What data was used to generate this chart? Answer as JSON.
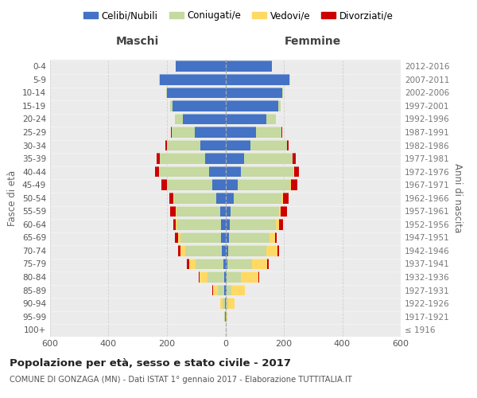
{
  "age_groups": [
    "100+",
    "95-99",
    "90-94",
    "85-89",
    "80-84",
    "75-79",
    "70-74",
    "65-69",
    "60-64",
    "55-59",
    "50-54",
    "45-49",
    "40-44",
    "35-39",
    "30-34",
    "25-29",
    "20-24",
    "15-19",
    "10-14",
    "5-9",
    "0-4"
  ],
  "birth_years": [
    "≤ 1916",
    "1917-1921",
    "1922-1926",
    "1927-1931",
    "1932-1936",
    "1937-1941",
    "1942-1946",
    "1947-1951",
    "1952-1956",
    "1957-1961",
    "1962-1966",
    "1967-1971",
    "1972-1976",
    "1977-1981",
    "1982-1986",
    "1987-1991",
    "1992-1996",
    "1997-2001",
    "2002-2006",
    "2007-2011",
    "2012-2016"
  ],
  "male_celibe": [
    0,
    1,
    2,
    3,
    5,
    8,
    12,
    14,
    15,
    18,
    30,
    45,
    55,
    70,
    85,
    105,
    145,
    180,
    200,
    225,
    170
  ],
  "male_coniugato": [
    0,
    2,
    8,
    22,
    55,
    95,
    125,
    140,
    150,
    150,
    145,
    155,
    170,
    155,
    115,
    80,
    28,
    8,
    2,
    1,
    0
  ],
  "male_vedovo": [
    0,
    2,
    8,
    18,
    28,
    22,
    16,
    9,
    5,
    3,
    2,
    1,
    1,
    0,
    0,
    0,
    0,
    0,
    0,
    0,
    0
  ],
  "male_divorziato": [
    0,
    0,
    0,
    1,
    2,
    7,
    10,
    9,
    9,
    18,
    16,
    18,
    16,
    10,
    5,
    2,
    1,
    0,
    0,
    0,
    0
  ],
  "female_nubile": [
    0,
    1,
    2,
    3,
    4,
    6,
    9,
    11,
    14,
    18,
    28,
    42,
    52,
    65,
    85,
    105,
    140,
    180,
    195,
    220,
    160
  ],
  "female_coniugata": [
    0,
    2,
    7,
    18,
    50,
    85,
    130,
    140,
    160,
    165,
    165,
    180,
    182,
    165,
    125,
    88,
    33,
    9,
    3,
    1,
    0
  ],
  "female_vedova": [
    1,
    5,
    22,
    45,
    60,
    52,
    38,
    18,
    10,
    7,
    4,
    3,
    2,
    1,
    0,
    0,
    0,
    0,
    0,
    0,
    0
  ],
  "female_divorziata": [
    0,
    0,
    0,
    1,
    2,
    5,
    7,
    7,
    14,
    22,
    20,
    20,
    16,
    9,
    5,
    2,
    1,
    0,
    0,
    0,
    0
  ],
  "color_celibe": "#4472C4",
  "color_coniugato": "#C5D9A0",
  "color_vedovo": "#FFD966",
  "color_divorziato": "#CC0000",
  "xlim": 600,
  "bg_color": "#ebebeb",
  "grid_color": "#d0d0d0",
  "title": "Popolazione per età, sesso e stato civile - 2017",
  "subtitle": "COMUNE DI GONZAGA (MN) - Dati ISTAT 1° gennaio 2017 - Elaborazione TUTTITALIA.IT",
  "ylabel_left": "Fasce di età",
  "ylabel_right": "Anni di nascita",
  "maschi": "Maschi",
  "femmine": "Femmine",
  "legend_labels": [
    "Celibi/Nubili",
    "Coniugati/e",
    "Vedovi/e",
    "Divorziati/e"
  ]
}
